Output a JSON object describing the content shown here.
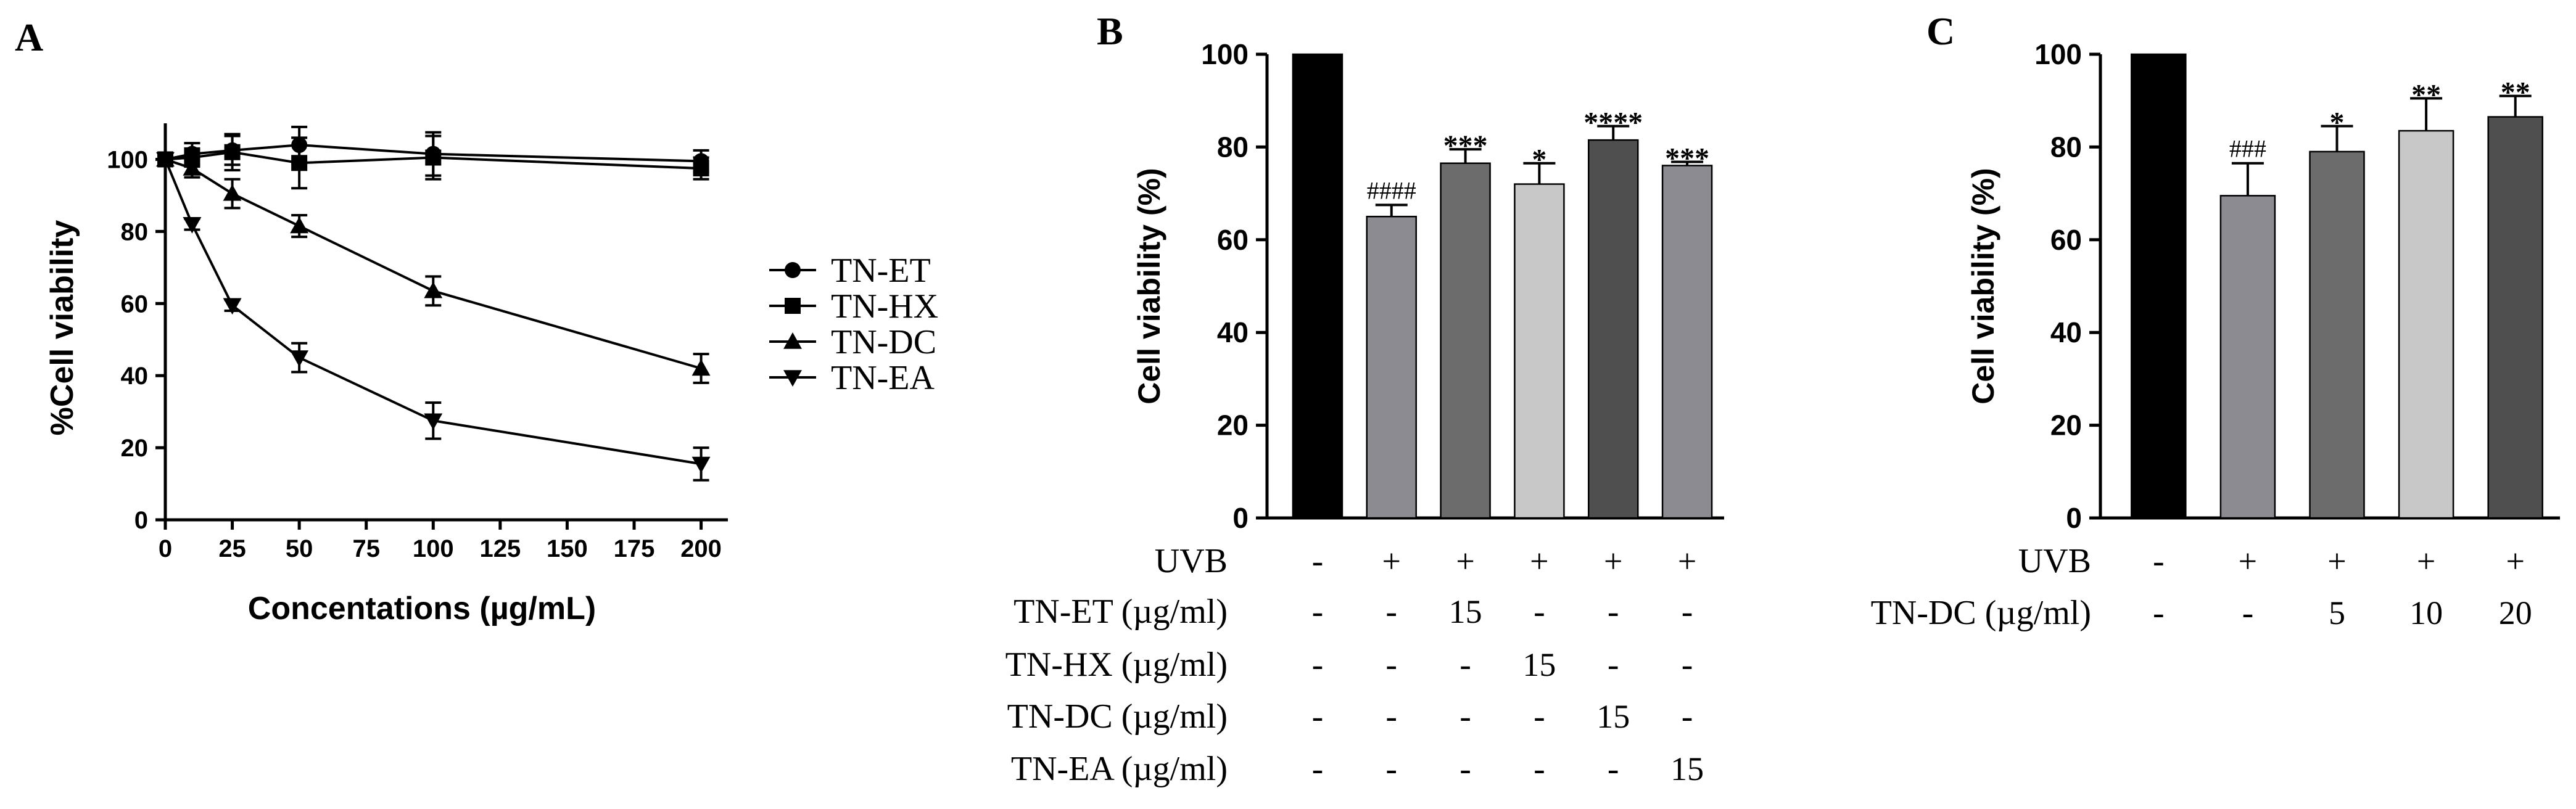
{
  "chart_data": [
    {
      "panel": "A",
      "type": "line",
      "xlabel": "Concentations (µg/mL)",
      "ylabel": "%Cell viability",
      "xlim": [
        0,
        210
      ],
      "ylim": [
        0,
        110
      ],
      "xticks": [
        0,
        25,
        50,
        75,
        100,
        125,
        150,
        175,
        200
      ],
      "yticks": [
        0,
        20,
        40,
        60,
        80,
        100
      ],
      "legend_position": "right",
      "series": [
        {
          "name": "TN-ET",
          "marker": "circle",
          "x": [
            0,
            10,
            25,
            50,
            100,
            200
          ],
          "y": [
            100,
            101.5,
            102.5,
            104,
            101.5,
            99.5
          ],
          "err": [
            1.5,
            3,
            4,
            5,
            6,
            3
          ]
        },
        {
          "name": "TN-HX",
          "marker": "square",
          "x": [
            0,
            10,
            25,
            50,
            100,
            200
          ],
          "y": [
            100,
            100.5,
            102,
            99,
            100.5,
            97.5
          ],
          "err": [
            1.5,
            2.5,
            5,
            7,
            6,
            3
          ]
        },
        {
          "name": "TN-DC",
          "marker": "triangle-up",
          "x": [
            0,
            10,
            25,
            50,
            100,
            200
          ],
          "y": [
            100,
            97.5,
            90.5,
            81.5,
            63.5,
            42
          ],
          "err": [
            1,
            2.5,
            4,
            3,
            4,
            4
          ]
        },
        {
          "name": "TN-EA",
          "marker": "triangle-down",
          "x": [
            0,
            10,
            25,
            50,
            100,
            200
          ],
          "y": [
            100,
            82,
            59.5,
            45,
            27.5,
            15.5
          ],
          "err": [
            1,
            1.5,
            1.5,
            4,
            5,
            4.5
          ]
        }
      ]
    },
    {
      "panel": "B",
      "type": "bar",
      "ylabel": "Cell viability (%)",
      "ylim": [
        0,
        100
      ],
      "yticks": [
        0,
        20,
        40,
        60,
        80,
        100
      ],
      "values": [
        100,
        65,
        76.5,
        72,
        81.5,
        76
      ],
      "errors": [
        0,
        2.5,
        3,
        4.5,
        3,
        0.8
      ],
      "colors": [
        "#000000",
        "#8c8b92",
        "#6c6c6c",
        "#c8c8c8",
        "#4f4f4f",
        "#8c8b92"
      ],
      "annotations": [
        "",
        "####",
        "***",
        "*",
        "****",
        "***"
      ],
      "treatment_rows": [
        {
          "label": "UVB",
          "values": [
            "-",
            "+",
            "+",
            "+",
            "+",
            "+"
          ]
        },
        {
          "label": "TN-ET (µg/ml)",
          "values": [
            "-",
            "-",
            "15",
            "-",
            "-",
            "-"
          ]
        },
        {
          "label": "TN-HX (µg/ml)",
          "values": [
            "-",
            "-",
            "-",
            "15",
            "-",
            "-"
          ]
        },
        {
          "label": "TN-DC (µg/ml)",
          "values": [
            "-",
            "-",
            "-",
            "-",
            "15",
            "-"
          ]
        },
        {
          "label": "TN-EA (µg/ml)",
          "values": [
            "-",
            "-",
            "-",
            "-",
            "-",
            "15"
          ]
        }
      ]
    },
    {
      "panel": "C",
      "type": "bar",
      "ylabel": "Cell viability (%)",
      "ylim": [
        0,
        100
      ],
      "yticks": [
        0,
        20,
        40,
        60,
        80,
        100
      ],
      "values": [
        100,
        69.5,
        79,
        83.5,
        86.5
      ],
      "errors": [
        0,
        7,
        5.5,
        7,
        4.5
      ],
      "colors": [
        "#000000",
        "#8c8b92",
        "#6c6c6c",
        "#c8c8c8",
        "#4f4f4f"
      ],
      "annotations": [
        "",
        "###",
        "*",
        "**",
        "**"
      ],
      "treatment_rows": [
        {
          "label": "UVB",
          "values": [
            "-",
            "+",
            "+",
            "+",
            "+"
          ]
        },
        {
          "label": "TN-DC (µg/ml)",
          "values": [
            "-",
            "-",
            "5",
            "10",
            "20"
          ]
        }
      ]
    }
  ]
}
